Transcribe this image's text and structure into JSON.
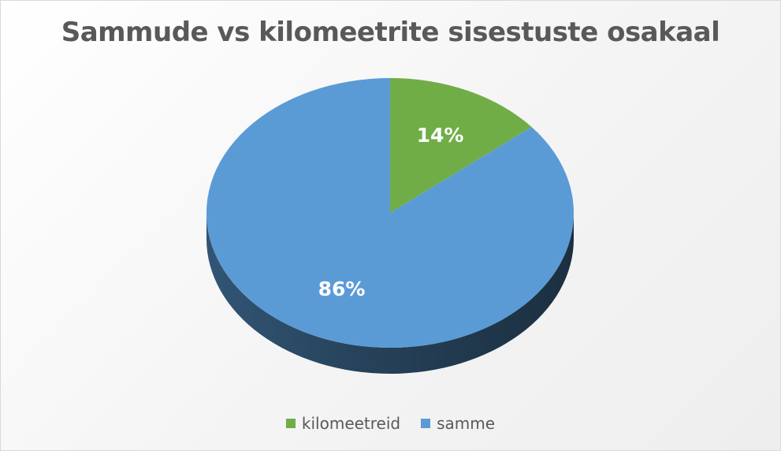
{
  "chart_data": {
    "type": "pie",
    "title": "Sammude vs kilomeetrite sisestuste osakaal",
    "categories": [
      "kilomeetreid",
      "samme"
    ],
    "values": [
      14,
      86
    ],
    "labels": [
      "14%",
      "86%"
    ],
    "colors": [
      "#70ad47",
      "#5b9bd5"
    ],
    "style": "3d",
    "legend_position": "bottom"
  }
}
